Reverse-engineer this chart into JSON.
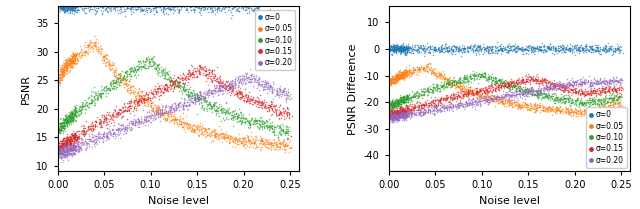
{
  "sigmas": [
    0,
    0.05,
    0.1,
    0.15,
    0.2
  ],
  "colors": [
    "#1f77b4",
    "#ff7f0e",
    "#2ca02c",
    "#d62728",
    "#9467bd"
  ],
  "legend_labels": [
    "σ=0",
    "σ=0.05",
    "σ=0.10",
    "σ=0.15",
    "σ=0.20"
  ],
  "noise_range": [
    0.001,
    0.25
  ],
  "n_points": 1200,
  "left_ylabel": "PSNR",
  "right_ylabel": "PSNR Difference",
  "xlabel": "Noise level",
  "left_ylim": [
    9,
    38
  ],
  "right_ylim": [
    -46,
    16
  ],
  "left_yticks": [
    10,
    15,
    20,
    25,
    30,
    35
  ],
  "right_yticks": [
    -40,
    -30,
    -20,
    -10,
    0,
    10
  ],
  "xlim": [
    0.0,
    0.26
  ],
  "xticks": [
    0.0,
    0.05,
    0.1,
    0.15,
    0.2,
    0.25
  ]
}
